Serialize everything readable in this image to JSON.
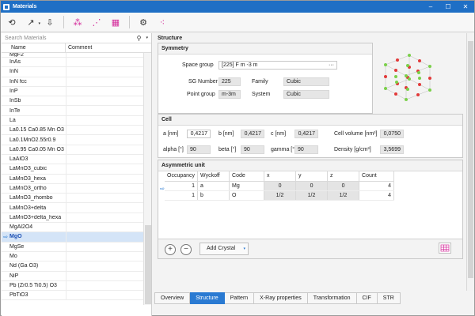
{
  "window": {
    "title": "Materials"
  },
  "search": {
    "placeholder": "Search Materials"
  },
  "list": {
    "col_name": "Name",
    "col_comment": "Comment",
    "items": [
      "InAs",
      "InN",
      "InN fcc",
      "InP",
      "InSb",
      "InTe",
      "La",
      "La0.15 Ca0.85 Mn O3",
      "La0.1MnO2.55r0.9",
      "La0.95 Ca0.05 Mn O3",
      "LaAlO3",
      "LaMnO3_cubic",
      "LaMnO3_hexa",
      "LaMnO3_ortho",
      "LaMnO3_rhombo",
      "LaMnO3+delta",
      "LaMnO3+delta_hexa",
      "MgAl2O4",
      "MgO",
      "MgSe",
      "Mo",
      "Nd (Ga O3)",
      "NiP",
      "Pb (Zr0.5 Ti0.5) O3",
      "PbTiO3"
    ],
    "selected": "MgO"
  },
  "structure": {
    "title": "Structure",
    "symmetry": {
      "title": "Symmetry",
      "space_group_label": "Space group",
      "space_group_value": "[225] F m -3 m",
      "sg_number_label": "SG Number",
      "sg_number_value": "225",
      "family_label": "Family",
      "family_value": "Cubic",
      "point_group_label": "Point group",
      "point_group_value": "m-3m",
      "system_label": "System",
      "system_value": "Cubic"
    },
    "cell": {
      "title": "Cell",
      "a_label": "a [nm]",
      "a_value": "0,4217",
      "b_label": "b [nm]",
      "b_value": "0,4217",
      "c_label": "c [nm]",
      "c_value": "0,4217",
      "vol_label": "Cell volume [nm³]",
      "vol_value": "0,0750",
      "alpha_label": "alpha [°]",
      "alpha_value": "90",
      "beta_label": "beta [°]",
      "beta_value": "90",
      "gamma_label": "gamma [°]",
      "gamma_value": "90",
      "density_label": "Density [g/cm³]",
      "density_value": "3,5699"
    },
    "asym": {
      "title": "Asymmetric unit",
      "headers": [
        "Occupancy",
        "Wyckoff",
        "Code",
        "x",
        "y",
        "z",
        "Count"
      ],
      "rows": [
        [
          "1",
          "a",
          "Mg",
          "0",
          "0",
          "0",
          "4"
        ],
        [
          "1",
          "b",
          "O",
          "1/2",
          "1/2",
          "1/2",
          "4"
        ]
      ]
    },
    "add_crystal": "Add Crystal"
  },
  "tabs": [
    "Overview",
    "Structure",
    "Pattern",
    "X-Ray properties",
    "Transformation",
    "CIF",
    "STR"
  ],
  "active_tab": "Structure"
}
